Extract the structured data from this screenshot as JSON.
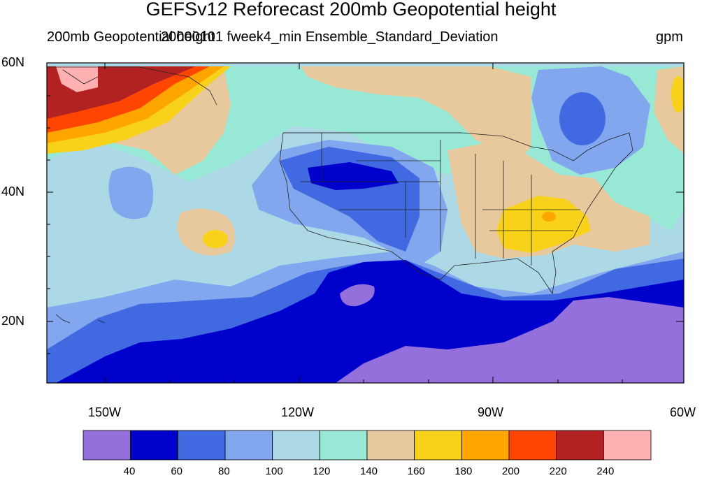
{
  "title": "GEFSv12 Reforecast 200mb Geopotential height",
  "subtitle_left": "200mb Geopotential height",
  "subtitle_center": "20000101 fweek4_min Ensemble_Standard_Deviation",
  "subtitle_right": "gpm",
  "lat_labels": [
    "60N",
    "40N",
    "20N"
  ],
  "lon_labels": [
    "150W",
    "120W",
    "90W",
    "60W"
  ],
  "colorbar": {
    "levels": [
      "40",
      "60",
      "80",
      "100",
      "120",
      "140",
      "160",
      "180",
      "200",
      "220",
      "240"
    ],
    "colors": [
      "#9370db",
      "#0000cd",
      "#4169e1",
      "#82a7ee",
      "#add8e6",
      "#98e8d6",
      "#e8c89d",
      "#f8d21a",
      "#ffa500",
      "#ff4500",
      "#b22222",
      "#ffb0b0"
    ]
  },
  "map": {
    "type": "filled-contour",
    "variable": "200mb Geopotential height ensemble standard deviation",
    "units": "gpm",
    "lon_range": [
      -160,
      -60
    ],
    "lat_range": [
      10,
      60
    ]
  }
}
